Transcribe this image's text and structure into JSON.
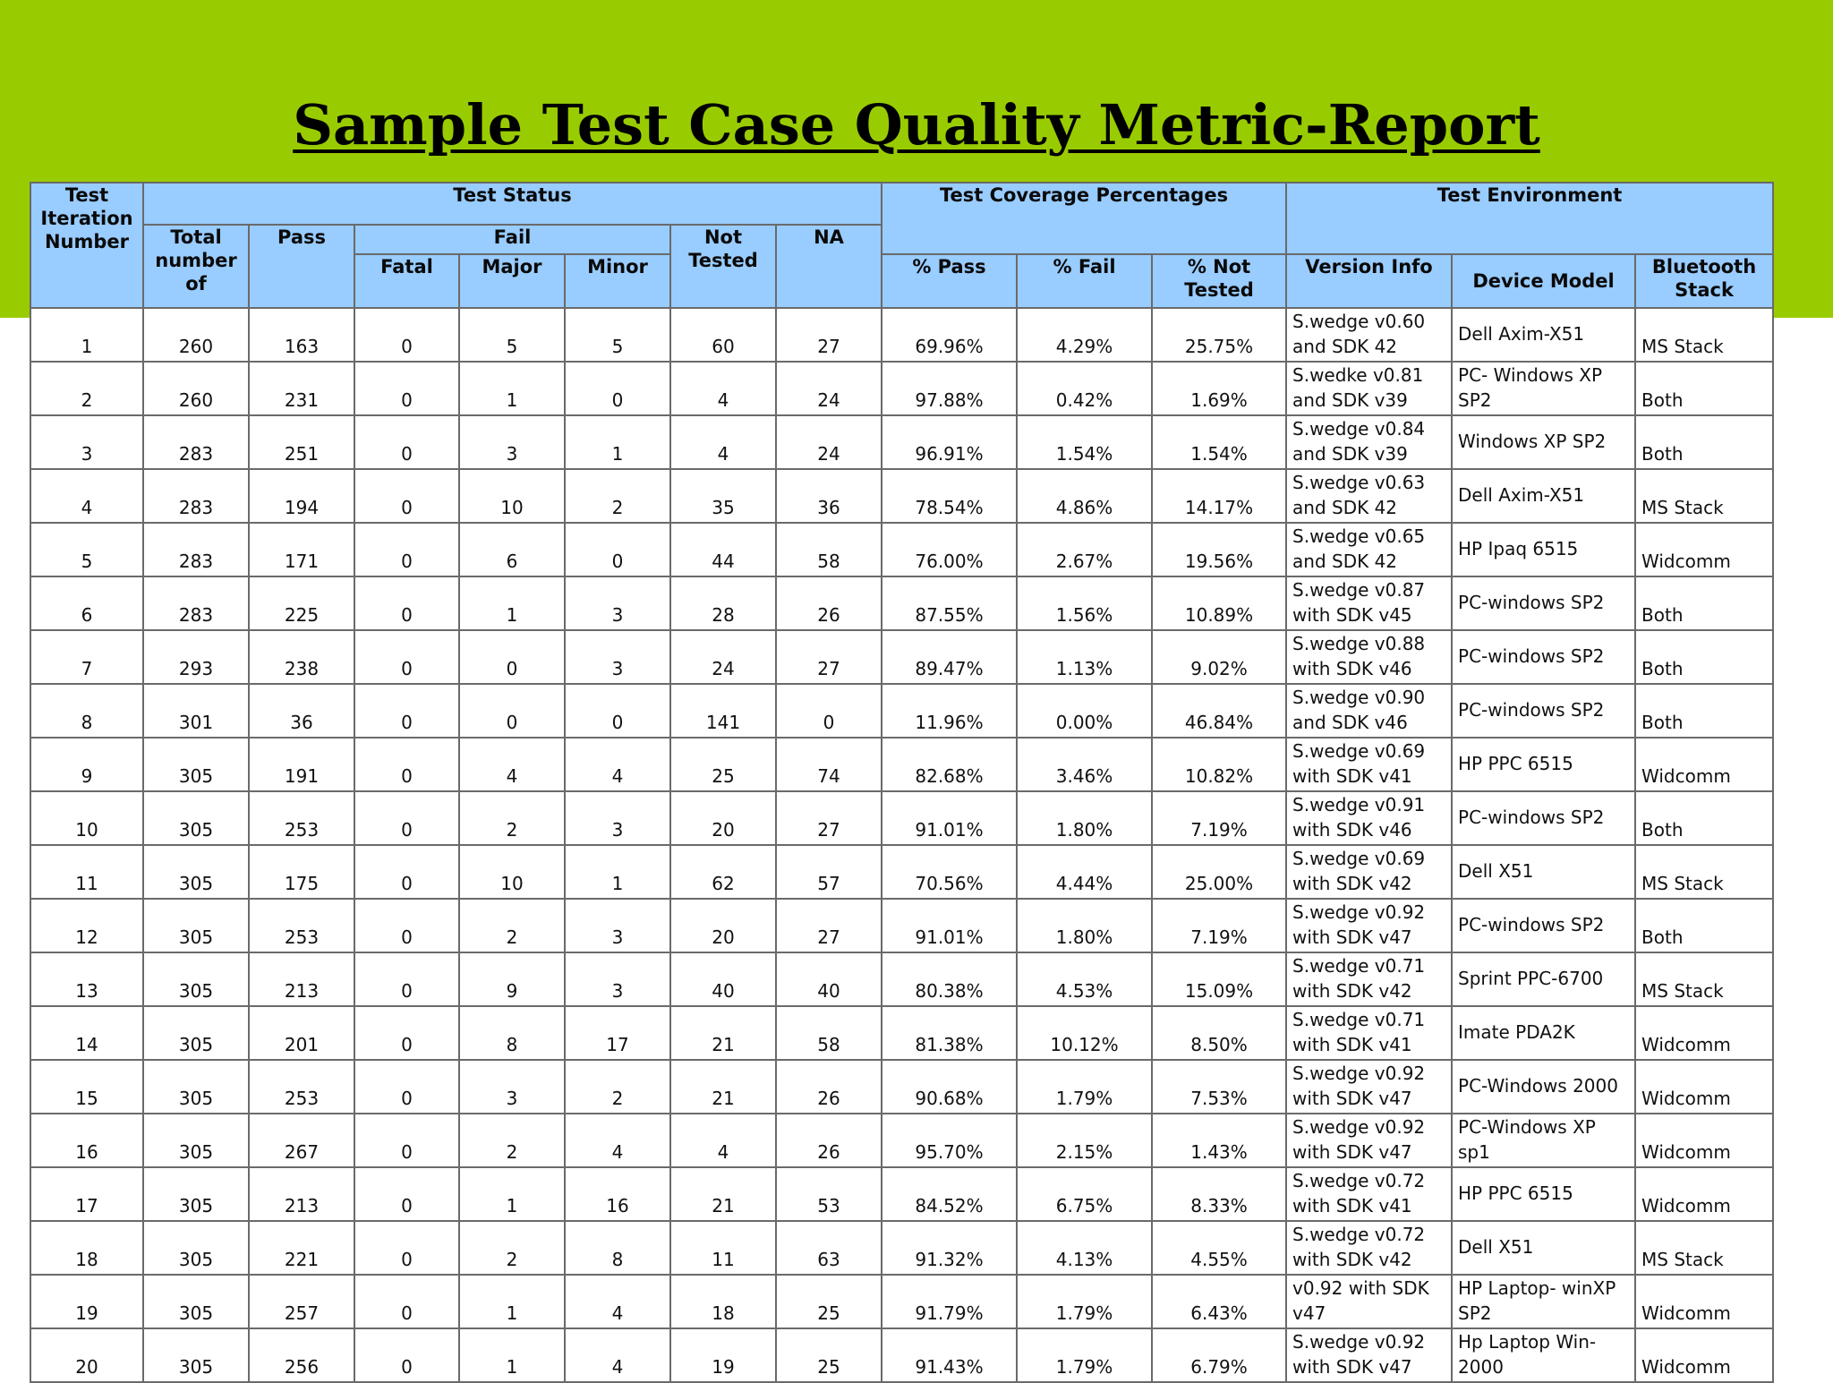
{
  "title": "Sample Test Case Quality Metric-Report",
  "colors": {
    "band": "#99cc00",
    "header_fill": "#99ccff",
    "grid": "#6a6a6a"
  },
  "headers": {
    "test_iteration_number": "Test Iteration Number",
    "test_status": "Test Status",
    "total_number_of": "Total number of",
    "pass": "Pass",
    "fail": "Fail",
    "fatal": "Fatal",
    "major": "Major",
    "minor": "Minor",
    "not_tested": "Not Tested",
    "na": "NA",
    "test_coverage_percentages": "Test Coverage Percentages",
    "pct_pass": "% Pass",
    "pct_fail": "% Fail",
    "pct_not_tested": "% Not Tested",
    "test_environment": "Test Environment",
    "version_info": "Version Info",
    "device_model": "Device Model",
    "bluetooth_stack": "Bluetooth Stack"
  },
  "rows": [
    [
      "1",
      "260",
      "163",
      "0",
      "5",
      "5",
      "60",
      "27",
      "69.96%",
      "4.29%",
      "25.75%",
      "S.wedge v0.60 and SDK 42",
      "Dell Axim-X51",
      "MS Stack"
    ],
    [
      "2",
      "260",
      "231",
      "0",
      "1",
      "0",
      "4",
      "24",
      "97.88%",
      "0.42%",
      "1.69%",
      "S.wedke v0.81 and SDK v39",
      "PC- Windows XP SP2",
      "Both"
    ],
    [
      "3",
      "283",
      "251",
      "0",
      "3",
      "1",
      "4",
      "24",
      "96.91%",
      "1.54%",
      "1.54%",
      "S.wedge v0.84 and SDK v39",
      "Windows XP SP2",
      "Both"
    ],
    [
      "4",
      "283",
      "194",
      "0",
      "10",
      "2",
      "35",
      "36",
      "78.54%",
      "4.86%",
      "14.17%",
      "S.wedge v0.63 and SDK 42",
      "Dell Axim-X51",
      "MS Stack"
    ],
    [
      "5",
      "283",
      "171",
      "0",
      "6",
      "0",
      "44",
      "58",
      "76.00%",
      "2.67%",
      "19.56%",
      "S.wedge v0.65 and SDK 42",
      "HP Ipaq 6515",
      "Widcomm"
    ],
    [
      "6",
      "283",
      "225",
      "0",
      "1",
      "3",
      "28",
      "26",
      "87.55%",
      "1.56%",
      "10.89%",
      "S.wedge v0.87 with SDK v45",
      "PC-windows SP2",
      "Both"
    ],
    [
      "7",
      "293",
      "238",
      "0",
      "0",
      "3",
      "24",
      "27",
      "89.47%",
      "1.13%",
      "9.02%",
      "S.wedge v0.88 with SDK v46",
      "PC-windows SP2",
      "Both"
    ],
    [
      "8",
      "301",
      "36",
      "0",
      "0",
      "0",
      "141",
      "0",
      "11.96%",
      "0.00%",
      "46.84%",
      "S.wedge v0.90 and SDK v46",
      "PC-windows SP2",
      "Both"
    ],
    [
      "9",
      "305",
      "191",
      "0",
      "4",
      "4",
      "25",
      "74",
      "82.68%",
      "3.46%",
      "10.82%",
      "S.wedge v0.69 with SDK v41",
      "HP PPC 6515",
      "Widcomm"
    ],
    [
      "10",
      "305",
      "253",
      "0",
      "2",
      "3",
      "20",
      "27",
      "91.01%",
      "1.80%",
      "7.19%",
      "S.wedge v0.91 with SDK v46",
      "PC-windows SP2",
      "Both"
    ],
    [
      "11",
      "305",
      "175",
      "0",
      "10",
      "1",
      "62",
      "57",
      "70.56%",
      "4.44%",
      "25.00%",
      "S.wedge v0.69 with SDK v42",
      "Dell X51",
      "MS Stack"
    ],
    [
      "12",
      "305",
      "253",
      "0",
      "2",
      "3",
      "20",
      "27",
      "91.01%",
      "1.80%",
      "7.19%",
      "S.wedge v0.92 with SDK v47",
      "PC-windows SP2",
      "Both"
    ],
    [
      "13",
      "305",
      "213",
      "0",
      "9",
      "3",
      "40",
      "40",
      "80.38%",
      "4.53%",
      "15.09%",
      "S.wedge v0.71 with SDK v42",
      "Sprint PPC-6700",
      "MS Stack"
    ],
    [
      "14",
      "305",
      "201",
      "0",
      "8",
      "17",
      "21",
      "58",
      "81.38%",
      "10.12%",
      "8.50%",
      "S.wedge v0.71 with SDK v41",
      "Imate PDA2K",
      "Widcomm"
    ],
    [
      "15",
      "305",
      "253",
      "0",
      "3",
      "2",
      "21",
      "26",
      "90.68%",
      "1.79%",
      "7.53%",
      "S.wedge v0.92 with SDK v47",
      "PC-Windows 2000",
      "Widcomm"
    ],
    [
      "16",
      "305",
      "267",
      "0",
      "2",
      "4",
      "4",
      "26",
      "95.70%",
      "2.15%",
      "1.43%",
      "S.wedge v0.92 with SDK v47",
      "PC-Windows XP sp1",
      "Widcomm"
    ],
    [
      "17",
      "305",
      "213",
      "0",
      "1",
      "16",
      "21",
      "53",
      "84.52%",
      "6.75%",
      "8.33%",
      "S.wedge v0.72 with SDK v41",
      "HP PPC 6515",
      "Widcomm"
    ],
    [
      "18",
      "305",
      "221",
      "0",
      "2",
      "8",
      "11",
      "63",
      "91.32%",
      "4.13%",
      "4.55%",
      "S.wedge v0.72 with SDK v42",
      "Dell X51",
      "MS Stack"
    ],
    [
      "19",
      "305",
      "257",
      "0",
      "1",
      "4",
      "18",
      "25",
      "91.79%",
      "1.79%",
      "6.43%",
      "v0.92 with SDK v47",
      "HP Laptop- winXP SP2",
      "Widcomm"
    ],
    [
      "20",
      "305",
      "256",
      "0",
      "1",
      "4",
      "19",
      "25",
      "91.43%",
      "1.79%",
      "6.79%",
      "S.wedge v0.92 with SDK v47",
      "Hp Laptop Win- 2000",
      "Widcomm"
    ]
  ]
}
